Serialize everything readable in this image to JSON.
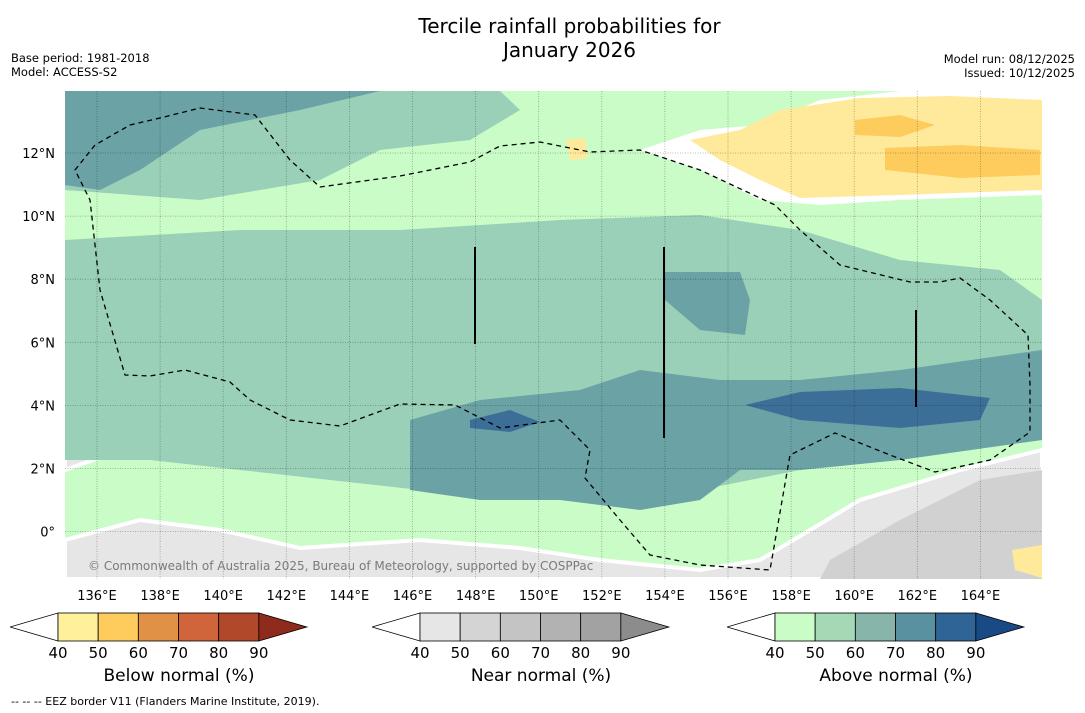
{
  "title_line1": "Tercile rainfall probabilities for",
  "title_line2": "January 2026",
  "meta_left": [
    "Base period: 1981-2018",
    "Model: ACCESS-S2"
  ],
  "meta_right": [
    "Model run: 08/12/2025",
    "Issued: 10/12/2025"
  ],
  "x_ticks": [
    "136°E",
    "138°E",
    "140°E",
    "142°E",
    "144°E",
    "146°E",
    "148°E",
    "150°E",
    "152°E",
    "154°E",
    "156°E",
    "158°E",
    "160°E",
    "162°E",
    "164°E"
  ],
  "y_ticks": [
    "12°N",
    "10°N",
    "8°N",
    "6°N",
    "4°N",
    "2°N",
    "0°"
  ],
  "copyright": "© Commonwealth of Australia 2025, Bureau of Meteorology, supported by COSPPac",
  "colorbars": [
    {
      "label": "Below normal (%)",
      "ticks": [
        "40",
        "50",
        "60",
        "70",
        "80",
        "90"
      ],
      "colors": [
        "#fff09c",
        "#fecc5c",
        "#e09145",
        "#d0643a",
        "#b1482a",
        "#8f2b1d"
      ]
    },
    {
      "label": "Near normal (%)",
      "ticks": [
        "40",
        "50",
        "60",
        "70",
        "80",
        "90"
      ],
      "colors": [
        "#e6e6e6",
        "#d4d4d4",
        "#c4c4c4",
        "#b2b2b2",
        "#a2a2a2",
        "#8c8c8c"
      ]
    },
    {
      "label": "Above normal (%)",
      "ticks": [
        "40",
        "50",
        "60",
        "70",
        "80",
        "90"
      ],
      "colors": [
        "#c9fcc7",
        "#a5d9b5",
        "#87b5aa",
        "#5a91a0",
        "#2f6496",
        "#1a4a86"
      ]
    }
  ],
  "footer": "--  --  -- EEZ border V11 (Flanders Marine Institute, 2019).",
  "colors": {
    "above_50": "#c9fcc7",
    "above_60": "#9bd0b8",
    "above_70": "#6aa2a5",
    "above_80": "#3c6f98",
    "near_50": "#e6e6e6",
    "near_60": "#d1d1d1",
    "below_50": "#ffea9c",
    "below_60": "#fecc5c"
  }
}
